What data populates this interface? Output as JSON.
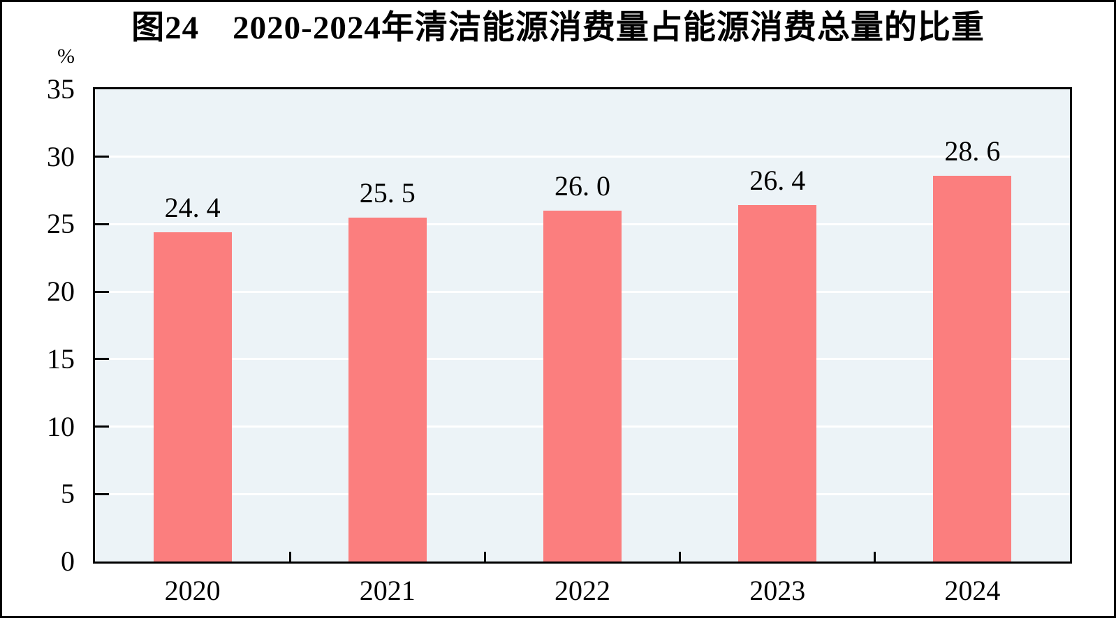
{
  "figure": {
    "title": "图24　2020-2024年清洁能源消费量占能源消费总量的比重",
    "unit_label": "%"
  },
  "chart_data": {
    "type": "bar",
    "title": "图24　2020-2024年清洁能源消费量占能源消费总量的比重",
    "categories": [
      "2020",
      "2021",
      "2022",
      "2023",
      "2024"
    ],
    "values": [
      24.4,
      25.5,
      26.0,
      26.4,
      28.6
    ],
    "value_labels": [
      "24. 4",
      "25. 5",
      "26. 0",
      "26. 4",
      "28. 6"
    ],
    "xlabel": "",
    "ylabel": "%",
    "ylim": [
      0,
      35
    ],
    "y_ticks": [
      0,
      5,
      10,
      15,
      20,
      25,
      30,
      35
    ],
    "grid": "horizontal",
    "legend_position": "none",
    "colors": {
      "bar": "#FB7E7E",
      "plot_background": "#ECF3F7",
      "gridline": "#FFFFFF",
      "axis": "#000000",
      "text": "#000000"
    }
  }
}
